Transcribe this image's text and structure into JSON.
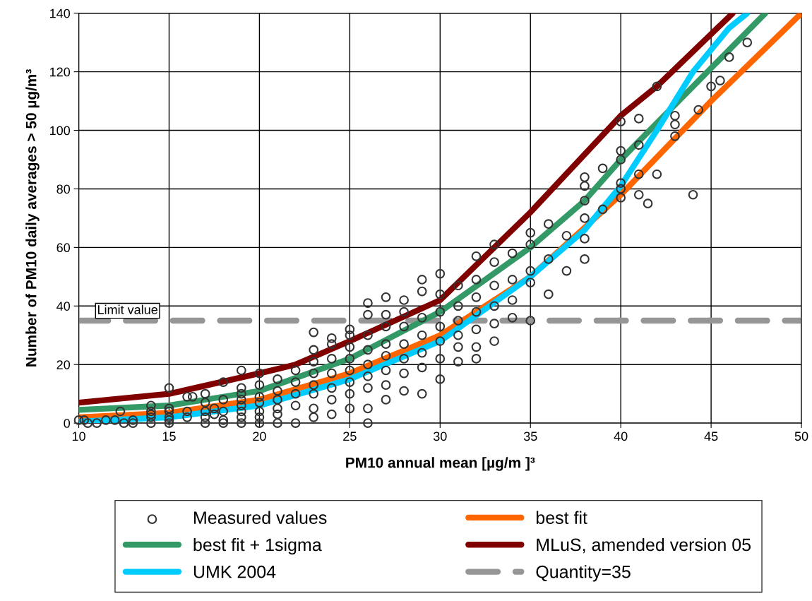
{
  "chart_data": {
    "type": "scatter",
    "xlabel": "PM10 annual mean [µg/m ]³",
    "ylabel": "Number of PM10 daily averages > 50 µg/m³",
    "xlim": [
      10,
      50
    ],
    "ylim": [
      0,
      140
    ],
    "xticks": [
      10,
      15,
      20,
      25,
      30,
      35,
      40,
      45,
      50
    ],
    "yticks": [
      0,
      20,
      40,
      60,
      80,
      100,
      120,
      140
    ],
    "grid": true,
    "legend": "bottom",
    "annotations": [
      {
        "text": "Limit value",
        "x": 12.7,
        "y": 35
      }
    ],
    "series": [
      {
        "name": "Measured values",
        "marker": "circle",
        "color": "#333333",
        "x": [
          10,
          10.3,
          10.5,
          11,
          11.5,
          12,
          12.3,
          12.5,
          13,
          13,
          14,
          14,
          14,
          14,
          14,
          15,
          15,
          15,
          15,
          15,
          15,
          16,
          16,
          16,
          16.3,
          17,
          17,
          17,
          17,
          17,
          17.5,
          17.5,
          18,
          18,
          18,
          18,
          18,
          19,
          19,
          19,
          19,
          19,
          19,
          19,
          19,
          20,
          20,
          20,
          20,
          20,
          20,
          20,
          21,
          21,
          21,
          21,
          21,
          21,
          22,
          22,
          22,
          22,
          22,
          23,
          23,
          23,
          23,
          23,
          23,
          23,
          23,
          24,
          24,
          24,
          24,
          24,
          24,
          24,
          25,
          25,
          25,
          25,
          25,
          25,
          25,
          25,
          26,
          26,
          26,
          26,
          26,
          26,
          26,
          26,
          26,
          27,
          27,
          27,
          27,
          27,
          27,
          27,
          27,
          28,
          28,
          28,
          28,
          28,
          28,
          28,
          29,
          29,
          29,
          29,
          29,
          29,
          29,
          30,
          30,
          30,
          30,
          30,
          30,
          30,
          31,
          31,
          31,
          31,
          31,
          31,
          32,
          32,
          32,
          32,
          32,
          32,
          32,
          33,
          33,
          33,
          33,
          33,
          33,
          34,
          34,
          34,
          34,
          35,
          35,
          35,
          35,
          35,
          36,
          36,
          36,
          37,
          37,
          38,
          38,
          38,
          38,
          38,
          38,
          39,
          39,
          40,
          40,
          40,
          40,
          40,
          40,
          41,
          41,
          41,
          41,
          41.5,
          42,
          42,
          43,
          43,
          43,
          44,
          44.3,
          45,
          45.5,
          46,
          47
        ],
        "values": [
          1,
          1,
          0,
          0,
          1,
          1,
          4,
          0,
          1,
          0,
          0,
          2,
          3,
          4,
          6,
          0,
          1,
          2,
          4,
          5,
          12,
          2,
          4,
          9,
          9,
          0,
          2,
          4,
          7,
          10,
          3,
          5,
          0,
          1,
          4,
          8,
          14,
          0,
          2,
          4,
          6,
          8,
          10,
          12,
          18,
          0,
          2,
          4,
          7,
          9,
          13,
          17,
          0,
          3,
          5,
          8,
          11,
          15,
          0,
          6,
          10,
          14,
          18,
          2,
          5,
          10,
          13,
          17,
          21,
          25,
          31,
          3,
          8,
          12,
          17,
          22,
          27,
          29,
          5,
          10,
          14,
          18,
          22,
          26,
          30,
          32,
          0,
          5,
          12,
          16,
          20,
          25,
          30,
          37,
          41,
          8,
          13,
          18,
          23,
          27,
          33,
          37,
          43,
          11,
          17,
          22,
          27,
          33,
          38,
          42,
          10,
          19,
          24,
          30,
          36,
          45,
          49,
          15,
          22,
          28,
          33,
          38,
          44,
          51,
          21,
          26,
          30,
          35,
          40,
          47,
          22,
          26,
          32,
          38,
          43,
          49,
          57,
          28,
          34,
          40,
          47,
          55,
          61,
          36,
          42,
          49,
          58,
          35,
          48,
          52,
          61,
          65,
          44,
          56,
          68,
          52,
          64,
          56,
          63,
          70,
          76,
          81,
          84,
          73,
          87,
          77,
          80,
          82,
          90,
          93,
          103,
          78,
          85,
          95,
          104,
          75,
          85,
          115,
          98,
          102,
          105,
          78,
          107,
          115,
          117,
          125,
          130
        ]
      },
      {
        "name": "best fit",
        "type": "line",
        "color": "#ff6600",
        "x": [
          10,
          15,
          20,
          25,
          30,
          35,
          40,
          45,
          50
        ],
        "values": [
          2,
          3.5,
          8,
          17,
          30,
          50,
          78,
          110,
          140
        ]
      },
      {
        "name": "best fit + 1sigma",
        "type": "line",
        "color": "#339966",
        "x": [
          10,
          15,
          20,
          25,
          30,
          35,
          38,
          40,
          44,
          48
        ],
        "values": [
          4.5,
          6,
          11,
          22,
          38,
          60,
          76,
          90,
          115,
          140
        ]
      },
      {
        "name": "MLuS, amended version 05",
        "type": "line",
        "color": "#800000",
        "x": [
          10,
          15,
          20,
          22,
          25,
          30,
          35,
          40,
          42,
          46.2
        ],
        "values": [
          7,
          10,
          17,
          20,
          28,
          42,
          72,
          105,
          115,
          140
        ]
      },
      {
        "name": "UMK 2004",
        "type": "line",
        "color": "#00ccff",
        "x": [
          10,
          15,
          20,
          25,
          30,
          35,
          38,
          40,
          42,
          44,
          46,
          47
        ],
        "values": [
          0.5,
          2,
          6,
          15,
          28,
          50,
          66,
          81,
          100,
          120,
          135,
          140
        ]
      },
      {
        "name": "Quantity=35",
        "type": "line",
        "color": "#969696",
        "line_style": "dashed",
        "x": [
          10,
          50
        ],
        "values": [
          35,
          35
        ]
      }
    ]
  }
}
